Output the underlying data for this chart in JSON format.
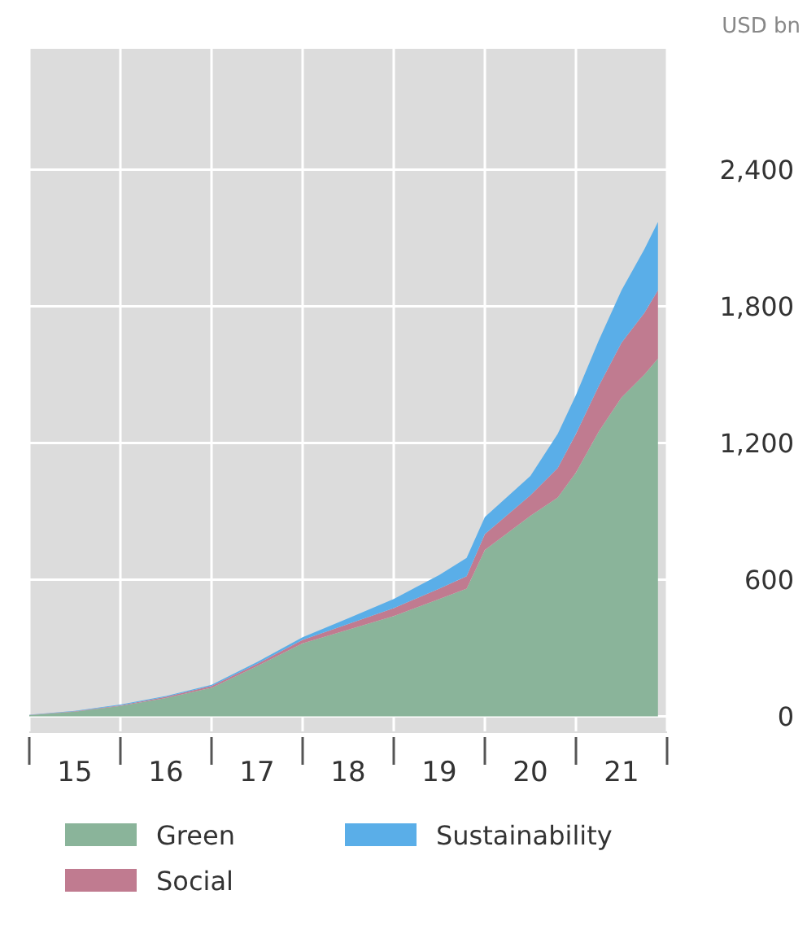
{
  "chart_data": {
    "type": "area",
    "stacked": true,
    "ylabel": "USD bn",
    "x": [
      14.5,
      15,
      15.5,
      16,
      16.5,
      17,
      17.5,
      18,
      18.5,
      19,
      19.3,
      19.5,
      20,
      20.3,
      20.5,
      20.75,
      21,
      21.25,
      21.4
    ],
    "series": [
      {
        "name": "Green",
        "color": "#8ab49a",
        "values": [
          5,
          20,
          45,
          80,
          125,
          220,
          320,
          380,
          440,
          515,
          560,
          730,
          880,
          960,
          1070,
          1250,
          1400,
          1500,
          1570
        ]
      },
      {
        "name": "Social",
        "color": "#c07b90",
        "values": [
          1,
          2,
          3,
          5,
          8,
          10,
          15,
          25,
          35,
          45,
          55,
          70,
          90,
          130,
          170,
          200,
          240,
          270,
          300
        ]
      },
      {
        "name": "Sustainability",
        "color": "#5aaee8",
        "values": [
          1,
          2,
          3,
          4,
          5,
          8,
          12,
          25,
          40,
          60,
          80,
          75,
          85,
          150,
          170,
          200,
          230,
          280,
          300
        ]
      }
    ],
    "xlim": [
      14.5,
      21.5
    ],
    "xticks": [
      {
        "value": 14.5,
        "label": null
      },
      15,
      {
        "value": 15.5,
        "label": null
      },
      16,
      {
        "value": 16.5,
        "label": null
      },
      17,
      {
        "value": 17.5,
        "label": null
      },
      18,
      {
        "value": 18.5,
        "label": null
      },
      19,
      {
        "value": 19.5,
        "label": null
      },
      20,
      {
        "value": 20.5,
        "label": null
      },
      21,
      {
        "value": 21.5,
        "label": null
      }
    ],
    "ylim": [
      -70,
      2930
    ],
    "yticks": [
      0,
      600,
      {
        "value": 1200,
        "label": "1,200"
      },
      {
        "value": 1800,
        "label": "1,800"
      },
      {
        "value": 2400,
        "label": "2,400"
      }
    ],
    "grid": true,
    "legend": "bottom"
  }
}
